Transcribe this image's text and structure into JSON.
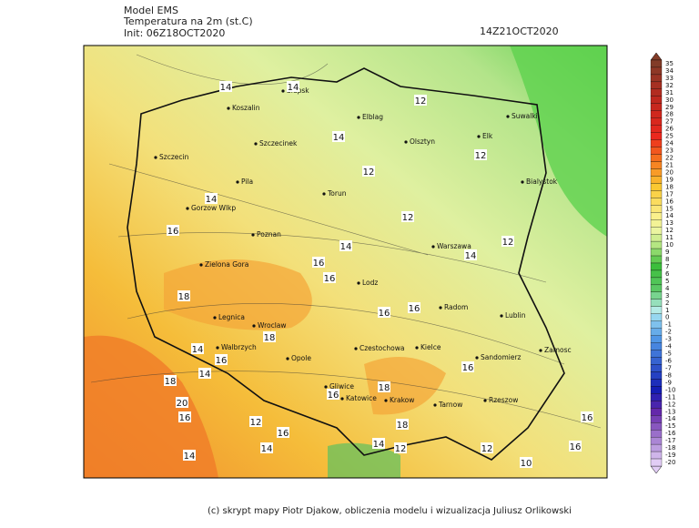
{
  "header": {
    "model": "Model EMS",
    "variable": "Temperatura na 2m (st.C)",
    "init": "Init: 06Z18OCT2020",
    "valid": "14Z21OCT2020"
  },
  "cities": [
    "Slupsk",
    "Koszalin",
    "Elblag",
    "Suwalki",
    "Szczecinek",
    "Olsztyn",
    "Elk",
    "Szczecin",
    "Pila",
    "Torun",
    "Bialystok",
    "Gorzow Wlkp",
    "Poznan",
    "Warszawa",
    "Zielona Gora",
    "Lodz",
    "Radom",
    "Lublin",
    "Legnica",
    "Wroclaw",
    "Walbrzych",
    "Opole",
    "Czestochowa",
    "Kielce",
    "Sandomierz",
    "Zamosc",
    "Gliwice",
    "Katowice",
    "Krakow",
    "Tarnow",
    "Rzeszow"
  ],
  "contour_labels": [
    14,
    14,
    12,
    14,
    12,
    12,
    14,
    12,
    16,
    14,
    12,
    14,
    16,
    16,
    18,
    16,
    16,
    18,
    14,
    16,
    14,
    16,
    18,
    16,
    18,
    20,
    16,
    12,
    18,
    16,
    14,
    14,
    14,
    12,
    12,
    16,
    16,
    10
  ],
  "legend_levels": [
    35,
    34,
    33,
    32,
    31,
    30,
    29,
    28,
    27,
    26,
    25,
    24,
    23,
    22,
    21,
    20,
    19,
    18,
    17,
    16,
    15,
    14,
    13,
    12,
    11,
    10,
    9,
    8,
    7,
    6,
    5,
    4,
    3,
    2,
    1,
    0,
    -1,
    -2,
    -3,
    -4,
    -5,
    -6,
    -7,
    -8,
    -9,
    -10,
    -11,
    -12,
    -13,
    -14,
    -15,
    -16,
    -17,
    -18,
    -19,
    -20
  ],
  "credit": "(c) skrypt mapy Piotr Djakow, obliczenia modelu i wizualizacja Juliusz Orlikowski"
}
